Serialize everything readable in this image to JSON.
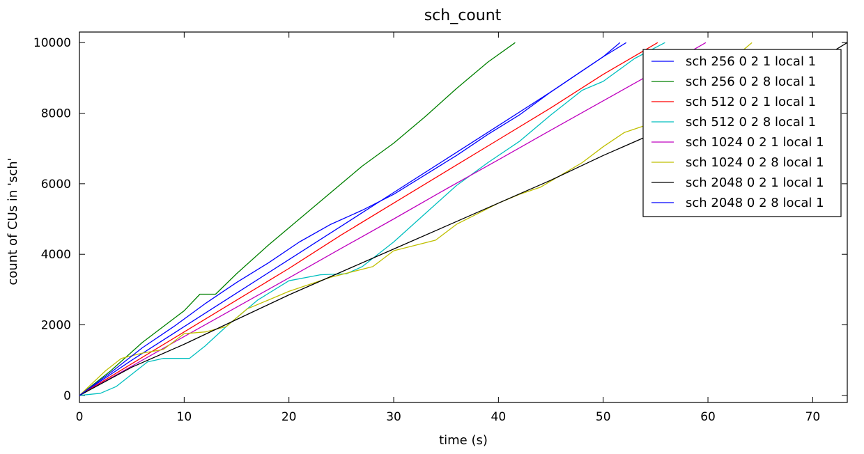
{
  "chart_data": {
    "type": "line",
    "title": "sch_count",
    "xlabel": "time (s)",
    "ylabel": "count of CUs in 'sch'",
    "xlim": [
      0,
      73.3
    ],
    "ylim": [
      -200,
      10300
    ],
    "xticks": [
      0,
      10,
      20,
      30,
      40,
      50,
      60,
      70
    ],
    "yticks": [
      0,
      2000,
      4000,
      6000,
      8000,
      10000
    ],
    "grid": false,
    "legend_position": "upper right",
    "series": [
      {
        "name": "sch 256 0 2 1 local 1",
        "color": "#0000ff",
        "x": [
          0,
          5,
          10,
          15,
          20,
          25,
          30,
          35,
          40,
          45,
          50,
          51.6
        ],
        "y": [
          0,
          1000,
          1950,
          2900,
          3850,
          4800,
          5750,
          6700,
          7650,
          8600,
          9600,
          10000
        ]
      },
      {
        "name": "sch 256 0 2 8 local 1",
        "color": "#008000",
        "x": [
          0,
          3,
          6,
          10,
          11.5,
          13,
          15,
          18,
          21,
          24,
          27,
          30,
          33,
          36,
          39,
          41.6
        ],
        "y": [
          0,
          700,
          1500,
          2400,
          2870,
          2870,
          3450,
          4250,
          5000,
          5750,
          6500,
          7150,
          7900,
          8700,
          9450,
          10000
        ]
      },
      {
        "name": "sch 512 0 2 1 local 1",
        "color": "#ff0000",
        "x": [
          0,
          5,
          10,
          15,
          20,
          25,
          30,
          35,
          40,
          45,
          50,
          55.2
        ],
        "y": [
          0,
          900,
          1800,
          2700,
          3600,
          4550,
          5450,
          6350,
          7250,
          8150,
          9100,
          10000
        ]
      },
      {
        "name": "sch 512 0 2 8 local 1",
        "color": "#00bfbf",
        "x": [
          0,
          2,
          3.5,
          6.5,
          8,
          10.5,
          12,
          14,
          17,
          20,
          23,
          25.5,
          27,
          30,
          33,
          36,
          39,
          42,
          45,
          48,
          50,
          53,
          55.9
        ],
        "y": [
          0,
          60,
          250,
          950,
          1050,
          1050,
          1400,
          1950,
          2700,
          3250,
          3420,
          3450,
          3650,
          4350,
          5150,
          5950,
          6600,
          7200,
          7950,
          8650,
          8900,
          9550,
          10000
        ]
      },
      {
        "name": "sch 1024 0 2 1 local 1",
        "color": "#bf00bf",
        "x": [
          0,
          5,
          10,
          15,
          20,
          25,
          30,
          35,
          40,
          45,
          50,
          55,
          59.8
        ],
        "y": [
          0,
          830,
          1670,
          2500,
          3330,
          4170,
          5000,
          5850,
          6680,
          7520,
          8350,
          9180,
          10000
        ]
      },
      {
        "name": "sch 1024 0 2 8 local 1",
        "color": "#bfbf00",
        "x": [
          0,
          2.5,
          4,
          6,
          8,
          10,
          12,
          14,
          16,
          18,
          20,
          22,
          24,
          26,
          28,
          30,
          32,
          34,
          36,
          38,
          40,
          42,
          44,
          46,
          48,
          50,
          52,
          54,
          56,
          58,
          60,
          62,
          64.2
        ],
        "y": [
          0,
          700,
          1050,
          1200,
          1300,
          1750,
          1800,
          1950,
          2450,
          2700,
          2950,
          3150,
          3350,
          3500,
          3650,
          4100,
          4250,
          4400,
          4850,
          5150,
          5450,
          5700,
          5900,
          6250,
          6600,
          7050,
          7450,
          7650,
          7950,
          8400,
          8900,
          9450,
          10000
        ]
      },
      {
        "name": "sch 2048 0 2 1 local 1",
        "color": "#000000",
        "x": [
          0,
          5,
          10,
          15,
          20,
          25,
          30,
          35,
          40,
          45,
          50,
          55,
          60,
          65,
          70,
          73.3
        ],
        "y": [
          0,
          800,
          1450,
          2150,
          2850,
          3500,
          4150,
          4800,
          5450,
          6100,
          6800,
          7450,
          8100,
          8750,
          9400,
          10000
        ]
      },
      {
        "name": "sch 2048 0 2 8 local 1",
        "color": "#0000ff",
        "x": [
          0,
          3,
          6,
          9,
          12,
          15,
          18,
          21,
          24,
          27,
          30,
          33,
          36,
          39,
          42,
          45,
          48,
          50,
          52.2
        ],
        "y": [
          0,
          650,
          1350,
          1950,
          2600,
          3200,
          3750,
          4350,
          4850,
          5250,
          5700,
          6250,
          6800,
          7400,
          7950,
          8600,
          9200,
          9600,
          10000
        ]
      }
    ]
  }
}
